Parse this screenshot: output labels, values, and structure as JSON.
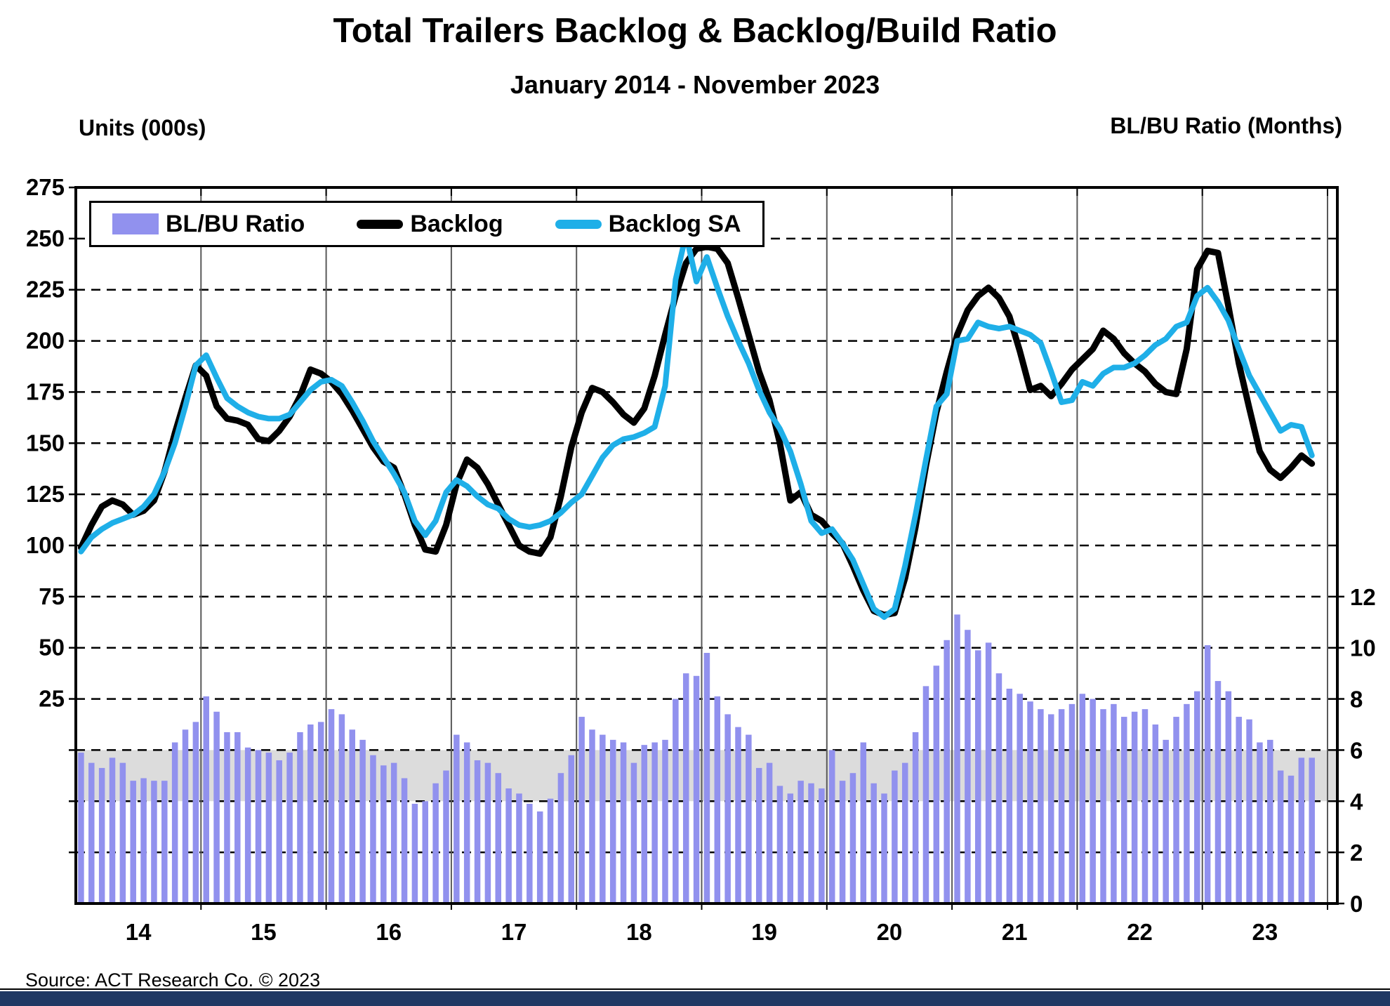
{
  "title": "Total Trailers Backlog & Backlog/Build Ratio",
  "subtitle": "January 2014 - November 2023",
  "left_axis_title": "Units (000s)",
  "right_axis_title": "BL/BU Ratio (Months)",
  "source": "Source: ACT Research Co. © 2023",
  "legend": {
    "items": [
      {
        "label": "BL/BU Ratio",
        "swatch": "bar"
      },
      {
        "label": "Backlog",
        "swatch": "backlog"
      },
      {
        "label": "Backlog SA",
        "swatch": "backlog_sa"
      }
    ]
  },
  "colors": {
    "bar": "#9191EE",
    "backlog": "#000000",
    "backlog_sa": "#1FAFE8",
    "band": "#DCDCDC",
    "grid": "#000000",
    "year_line": "#595959",
    "frame": "#000000",
    "footer": "#1F3864"
  },
  "chart_data": {
    "type": "bar+line combo, monthly, dual axis",
    "title": "Total Trailers Backlog & Backlog/Build Ratio",
    "subtitle": "January 2014 - November 2023",
    "x_start": "2014-01",
    "x_end": "2023-11",
    "x_tick_labels": [
      "14",
      "15",
      "16",
      "17",
      "18",
      "19",
      "20",
      "21",
      "22",
      "23"
    ],
    "left_axis": {
      "title": "Units (000s)",
      "min": -75,
      "max": 275,
      "tick_labels": [
        25,
        50,
        75,
        100,
        125,
        150,
        175,
        200,
        225,
        250,
        275
      ],
      "gridline_values": [
        -50,
        -25,
        0,
        25,
        50,
        75,
        100,
        125,
        150,
        175,
        200,
        225,
        250
      ]
    },
    "right_axis": {
      "title": "BL/BU Ratio (Months)",
      "min": 0,
      "max": 28,
      "tick_labels": [
        0,
        2,
        4,
        6,
        8,
        10,
        12
      ]
    },
    "normal_band": {
      "axis": "right",
      "from": 4,
      "to": 6
    },
    "grid": "horizontal dashed every 25 units; solid vertical line at each year boundary",
    "legend_position": "top-left inside plot",
    "series": [
      {
        "name": "BL/BU Ratio",
        "type": "bar",
        "axis": "right",
        "values": [
          5.9,
          5.5,
          5.3,
          5.7,
          5.5,
          4.8,
          4.9,
          4.8,
          4.8,
          6.3,
          6.8,
          7.1,
          8.1,
          7.5,
          6.7,
          6.7,
          6.1,
          6.0,
          5.9,
          5.6,
          5.9,
          6.7,
          7.0,
          7.1,
          7.6,
          7.4,
          6.8,
          6.4,
          5.8,
          5.4,
          5.5,
          4.9,
          3.9,
          4.0,
          4.7,
          5.2,
          6.6,
          6.3,
          5.6,
          5.5,
          5.1,
          4.5,
          4.3,
          3.9,
          3.6,
          4.1,
          5.1,
          5.8,
          7.3,
          6.8,
          6.6,
          6.4,
          6.3,
          5.5,
          6.2,
          6.3,
          6.4,
          8.0,
          9.0,
          8.9,
          9.8,
          8.1,
          7.4,
          6.9,
          6.6,
          5.3,
          5.5,
          4.6,
          4.3,
          4.8,
          4.7,
          4.5,
          6.0,
          4.8,
          5.1,
          6.3,
          4.7,
          4.3,
          5.2,
          5.5,
          6.7,
          8.5,
          9.3,
          10.3,
          11.3,
          10.7,
          9.9,
          10.2,
          9.0,
          8.4,
          8.2,
          7.9,
          7.6,
          7.4,
          7.6,
          7.8,
          8.2,
          8.0,
          7.6,
          7.8,
          7.3,
          7.5,
          7.6,
          7.0,
          6.4,
          7.3,
          7.8,
          8.3,
          10.1,
          8.7,
          8.3,
          7.3,
          7.2,
          6.3,
          6.4,
          5.2,
          5.0,
          5.7,
          5.7
        ]
      },
      {
        "name": "Backlog",
        "type": "line",
        "axis": "left",
        "values": [
          99,
          110,
          119,
          122,
          120,
          115,
          117,
          122,
          136,
          155,
          172,
          188,
          183,
          168,
          162,
          161,
          159,
          152,
          151,
          156,
          163,
          173,
          186,
          184,
          180,
          174,
          166,
          157,
          148,
          141,
          138,
          125,
          110,
          98,
          97,
          110,
          130,
          142,
          138,
          130,
          120,
          110,
          100,
          97,
          96,
          104,
          124,
          148,
          165,
          177,
          175,
          170,
          164,
          160,
          167,
          183,
          203,
          222,
          238,
          245,
          246,
          245,
          238,
          221,
          203,
          185,
          171,
          150,
          122,
          126,
          115,
          112,
          106,
          101,
          90,
          78,
          68,
          66,
          67,
          84,
          109,
          139,
          165,
          185,
          203,
          215,
          222,
          226,
          221,
          212,
          195,
          176,
          178,
          173,
          179,
          186,
          191,
          196,
          205,
          201,
          194,
          189,
          185,
          179,
          175,
          174,
          196,
          235,
          244,
          243,
          217,
          189,
          167,
          146,
          137,
          133,
          138,
          144,
          140
        ]
      },
      {
        "name": "Backlog SA",
        "type": "line",
        "axis": "left",
        "values": [
          97,
          104,
          108,
          111,
          113,
          115,
          119,
          125,
          136,
          150,
          168,
          188,
          193,
          182,
          172,
          168,
          165,
          163,
          162,
          162,
          164,
          170,
          176,
          180,
          181,
          178,
          170,
          161,
          151,
          143,
          135,
          126,
          112,
          105,
          112,
          126,
          132,
          129,
          124,
          120,
          118,
          113,
          110,
          109,
          110,
          112,
          116,
          121,
          125,
          134,
          143,
          149,
          152,
          153,
          155,
          158,
          178,
          230,
          252,
          229,
          241,
          226,
          212,
          200,
          189,
          176,
          165,
          157,
          146,
          130,
          112,
          106,
          108,
          101,
          93,
          81,
          69,
          65,
          69,
          90,
          115,
          142,
          168,
          174,
          200,
          201,
          209,
          207,
          206,
          207,
          205,
          203,
          199,
          185,
          170,
          171,
          180,
          178,
          184,
          187,
          187,
          189,
          193,
          198,
          201,
          207,
          209,
          222,
          226,
          219,
          210,
          196,
          183,
          174,
          165,
          156,
          159,
          158,
          144
        ]
      }
    ]
  }
}
